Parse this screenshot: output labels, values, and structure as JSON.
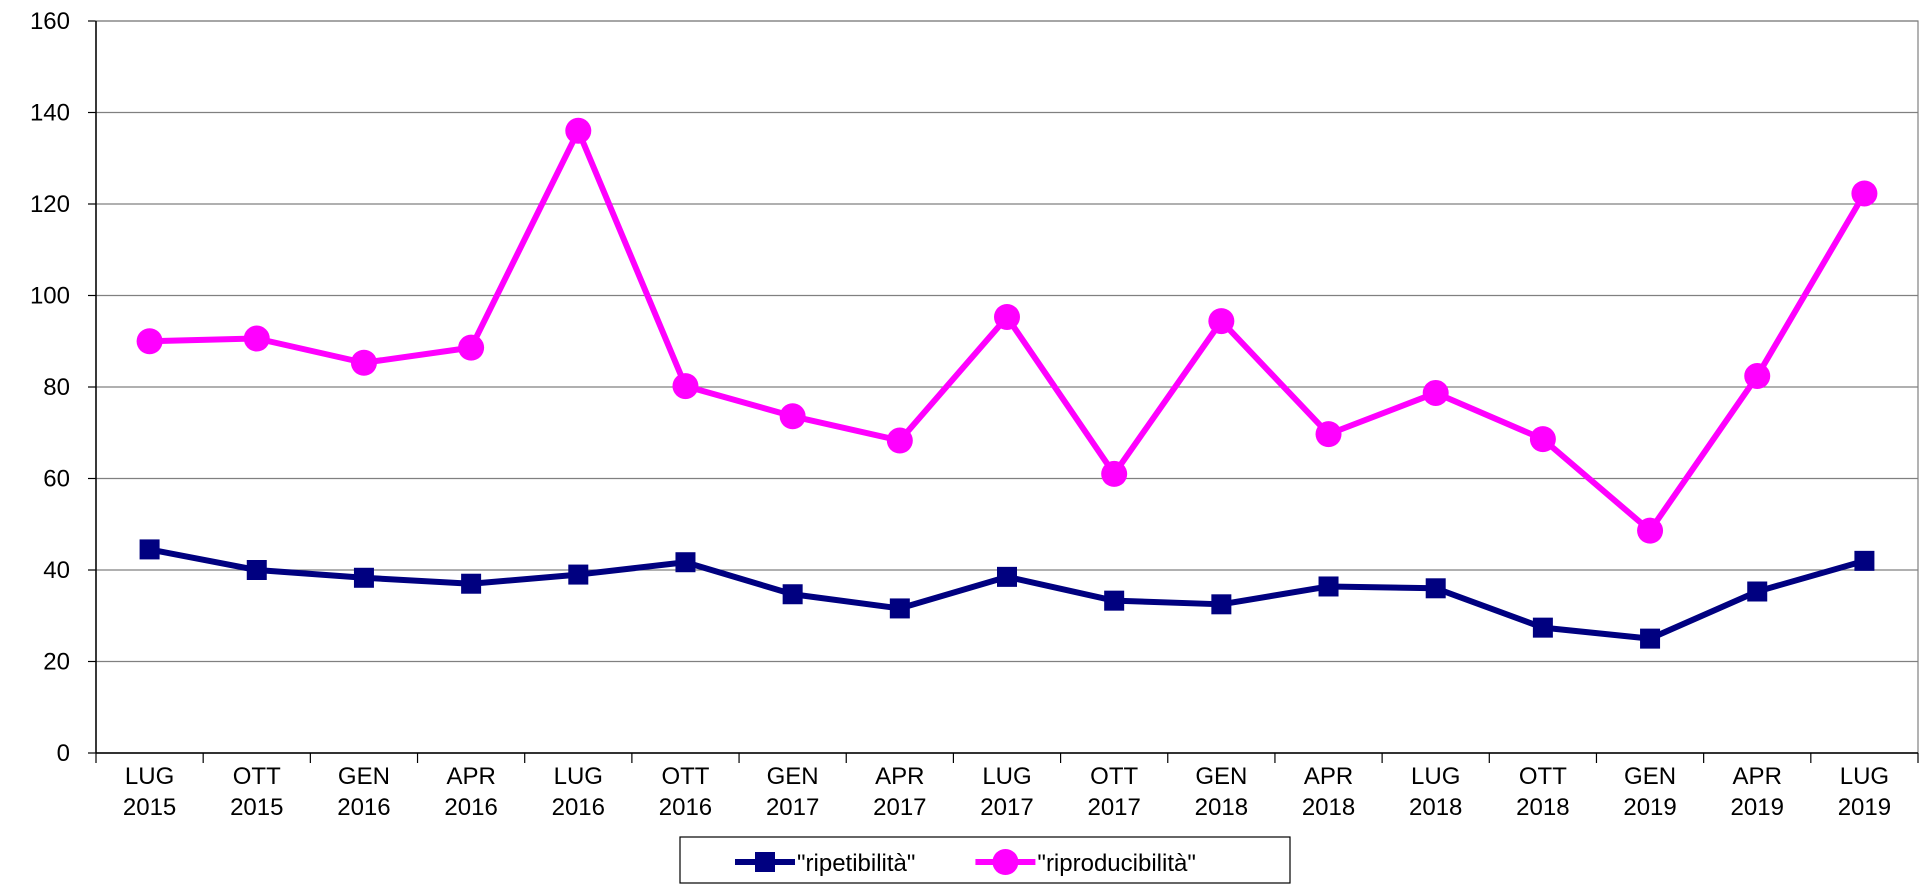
{
  "chart_data": {
    "type": "line",
    "categories": [
      "LUG 2015",
      "OTT 2015",
      "GEN 2016",
      "APR 2016",
      "LUG 2016",
      "OTT 2016",
      "GEN 2017",
      "APR 2017",
      "LUG 2017",
      "OTT 2017",
      "GEN 2018",
      "APR 2018",
      "LUG 2018",
      "OTT 2018",
      "GEN 2019",
      "APR 2019",
      "LUG 2019"
    ],
    "series": [
      {
        "name": "\"ripetibilità\"",
        "color": "#000080",
        "marker": "square",
        "values": [
          44.5,
          40,
          38.3,
          37,
          39,
          41.7,
          34.7,
          31.6,
          38.5,
          33.3,
          32.5,
          36.4,
          36,
          27.4,
          25,
          35.3,
          42
        ]
      },
      {
        "name": "\"riproducibilità\"",
        "color": "#ff00ff",
        "marker": "circle",
        "values": [
          90,
          90.6,
          85.3,
          88.6,
          136,
          80.2,
          73.6,
          68.3,
          95.3,
          61,
          94.4,
          69.7,
          78.7,
          68.6,
          48.6,
          82.4,
          122.3
        ]
      }
    ],
    "ylim": [
      0,
      160
    ],
    "yticks": [
      0,
      20,
      40,
      60,
      80,
      100,
      120,
      140,
      160
    ],
    "grid": true,
    "legend": "bottom"
  }
}
